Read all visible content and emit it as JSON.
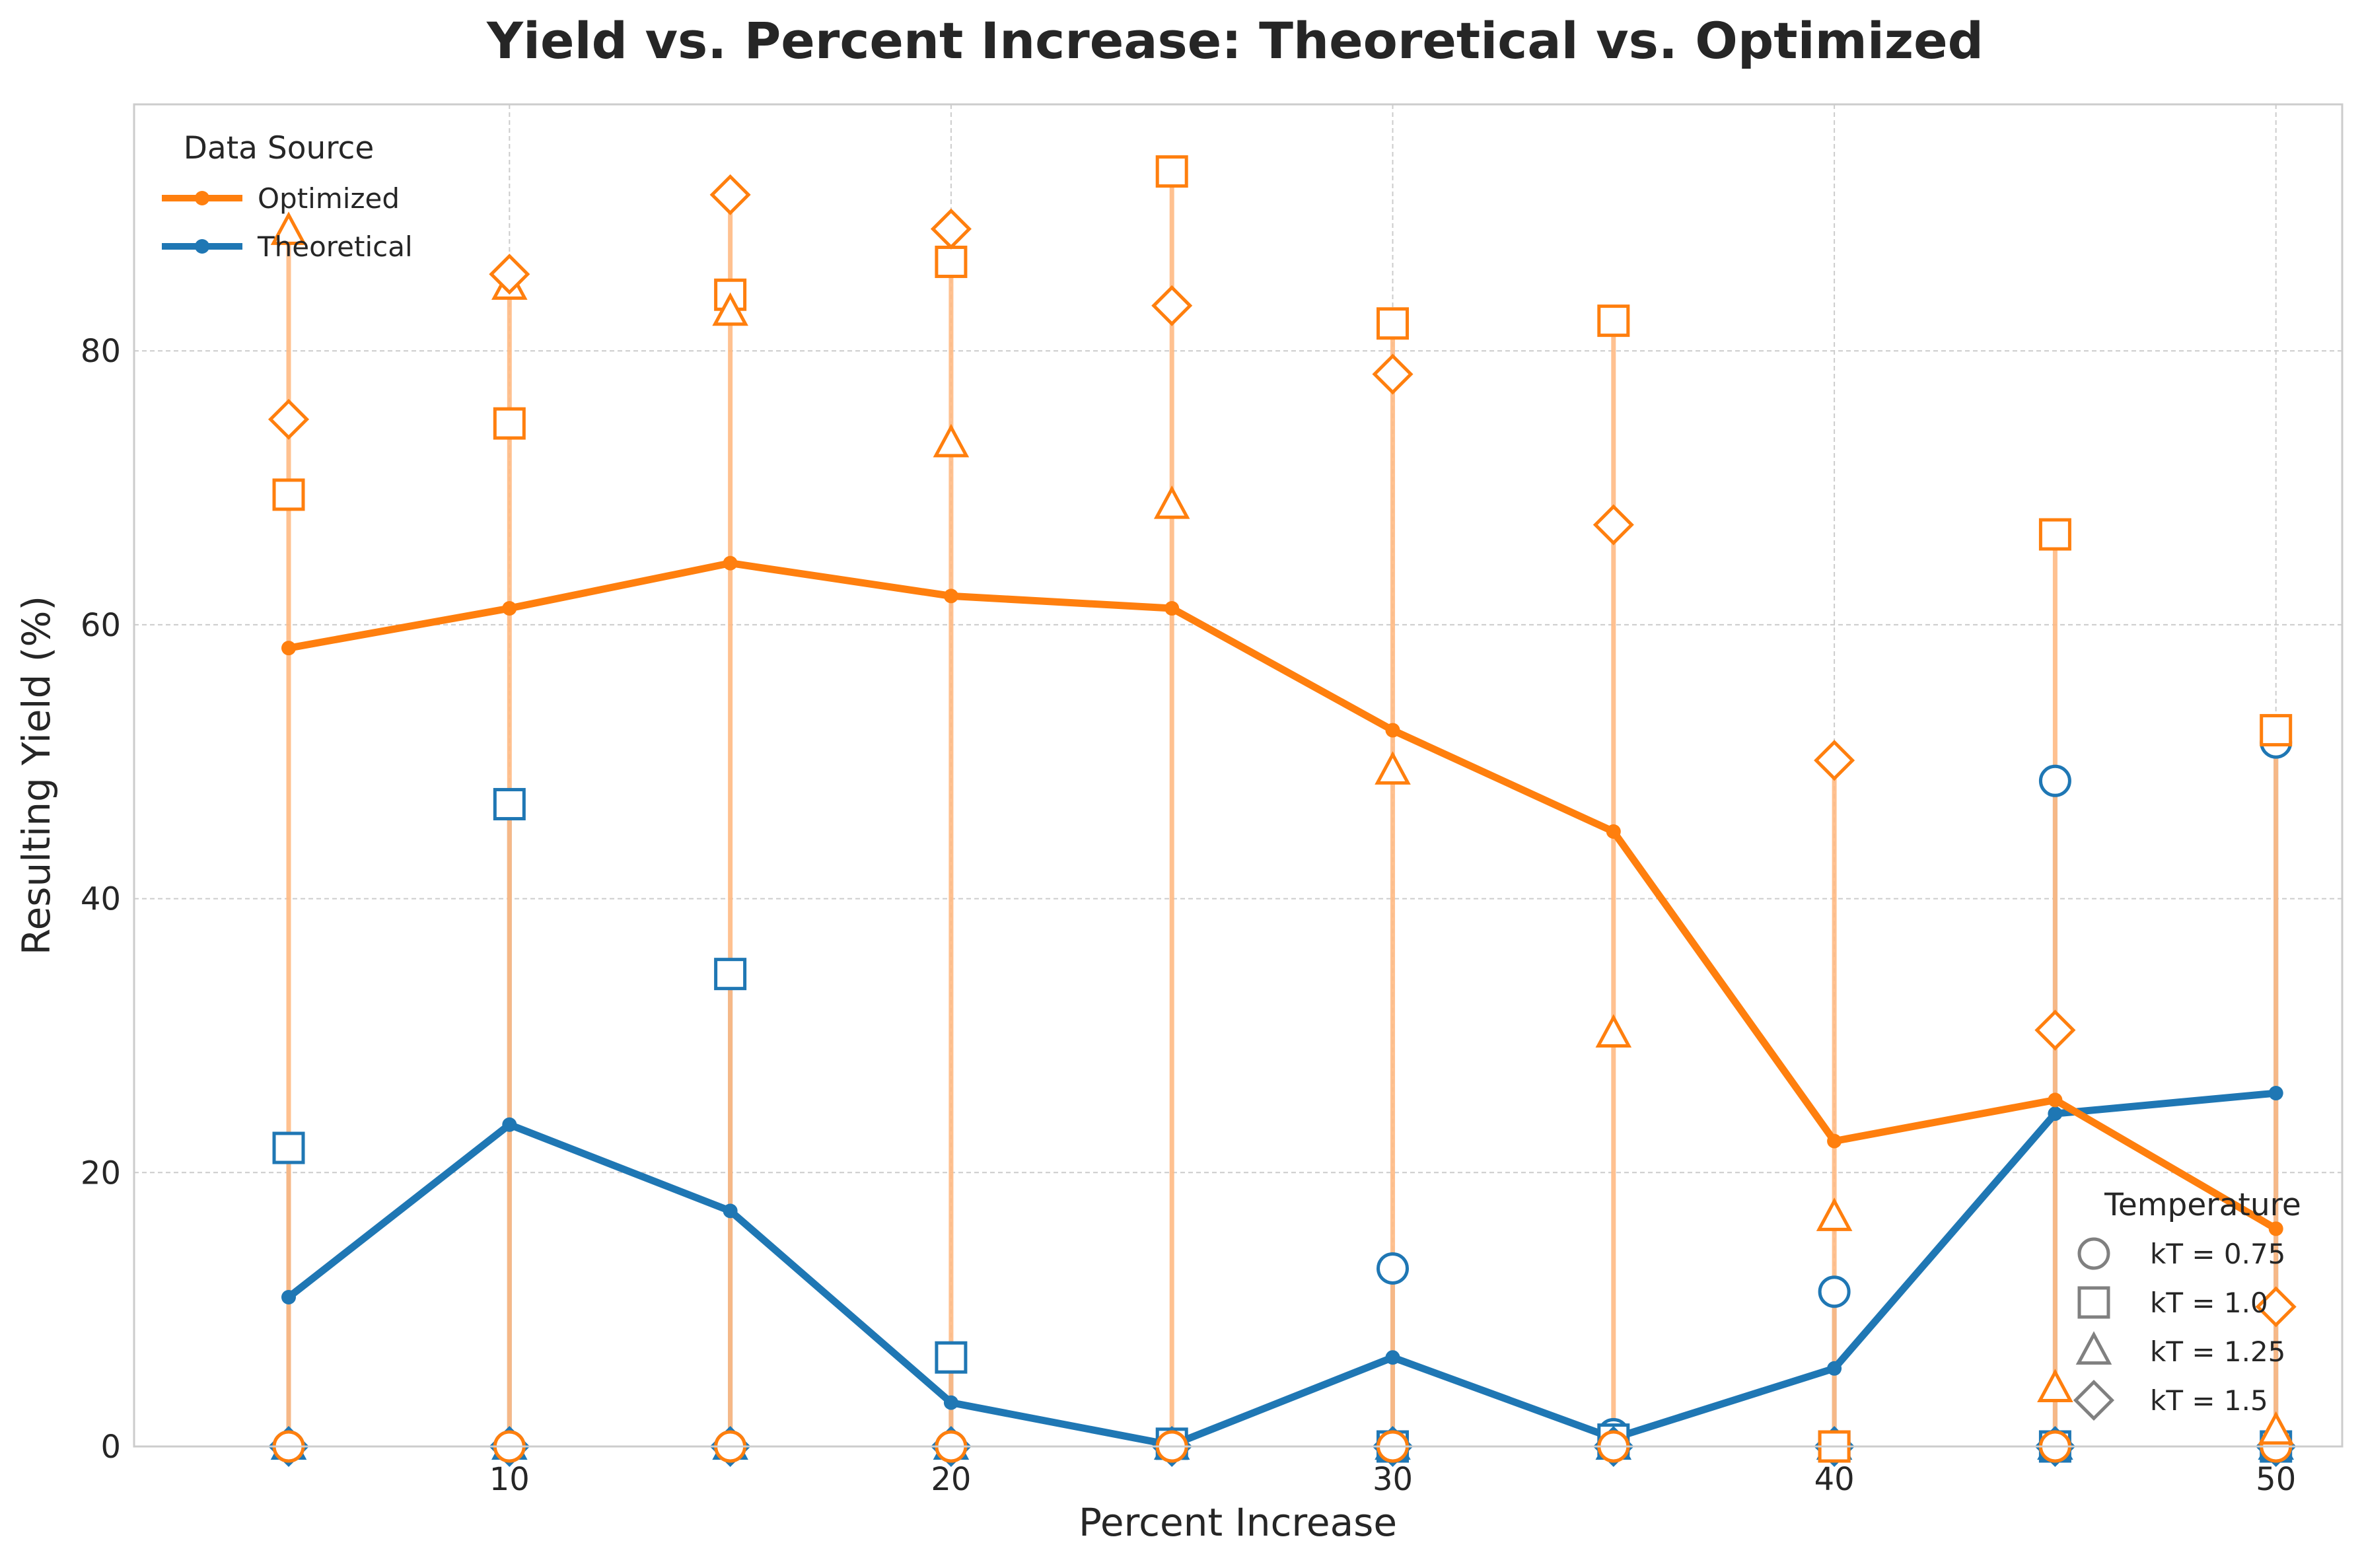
{
  "chart_data": {
    "type": "line",
    "title": "Yield vs. Percent Increase: Theoretical vs. Optimized",
    "xlabel": "Percent Increase",
    "ylabel": "Resulting Yield (%)",
    "xlim": [
      1.5,
      51.5
    ],
    "ylim": [
      0,
      98
    ],
    "xticks": [
      10,
      20,
      30,
      40,
      50
    ],
    "yticks": [
      0,
      20,
      40,
      60,
      80
    ],
    "grid": true,
    "x": [
      5,
      10,
      15,
      20,
      25,
      30,
      35,
      40,
      45,
      50
    ],
    "series": [
      {
        "name": "Optimized",
        "color": "#ff7f0e",
        "mean": [
          58.3,
          61.2,
          64.5,
          62.1,
          61.2,
          52.3,
          44.9,
          22.3,
          25.3,
          15.9
        ],
        "points": {
          "kT = 0.75": [
            0,
            0,
            0,
            0,
            0,
            0,
            0,
            0,
            0,
            0
          ],
          "kT = 1.0": [
            69.5,
            74.7,
            84.1,
            86.5,
            93.1,
            82.0,
            82.2,
            0,
            66.6,
            52.3
          ],
          "kT = 1.25": [
            88.7,
            84.7,
            82.8,
            73.2,
            68.7,
            49.3,
            30.1,
            16.7,
            4.2,
            1.1
          ],
          "kT = 1.5": [
            75.0,
            85.6,
            91.4,
            88.9,
            83.3,
            78.3,
            67.3,
            50.1,
            30.4,
            10.2
          ]
        }
      },
      {
        "name": "Theoretical",
        "color": "#1f77b4",
        "mean": [
          10.9,
          23.5,
          17.2,
          3.2,
          0.1,
          6.5,
          0.6,
          5.7,
          24.3,
          25.8
        ],
        "points": {
          "kT = 0.75": [
            0,
            0,
            0,
            0,
            0,
            13.0,
            0.9,
            11.3,
            48.6,
            51.4
          ],
          "kT = 1.0": [
            21.8,
            46.9,
            34.5,
            6.5,
            0.2,
            0,
            0.5,
            0,
            0,
            0
          ],
          "kT = 1.25": [
            0,
            0,
            0,
            0,
            0,
            0,
            0,
            0,
            0,
            0
          ],
          "kT = 1.5": [
            0,
            0,
            0,
            0,
            0,
            0,
            0,
            0,
            0,
            0
          ]
        }
      }
    ],
    "legend_data_source": {
      "title": "Data Source",
      "position": "top-left",
      "entries": [
        "Optimized",
        "Theoretical"
      ]
    },
    "legend_temperature": {
      "title": "Temperature",
      "position": "bottom-right",
      "entries": [
        {
          "label": "kT = 0.75",
          "marker": "circle"
        },
        {
          "label": "kT = 1.0",
          "marker": "square"
        },
        {
          "label": "kT = 1.25",
          "marker": "triangle"
        },
        {
          "label": "kT = 1.5",
          "marker": "diamond"
        }
      ]
    },
    "range_line_colors": {
      "Optimized": "#ffbb85",
      "Theoretical": "#9a9a9a"
    },
    "legend_marker_color": "#808080"
  }
}
